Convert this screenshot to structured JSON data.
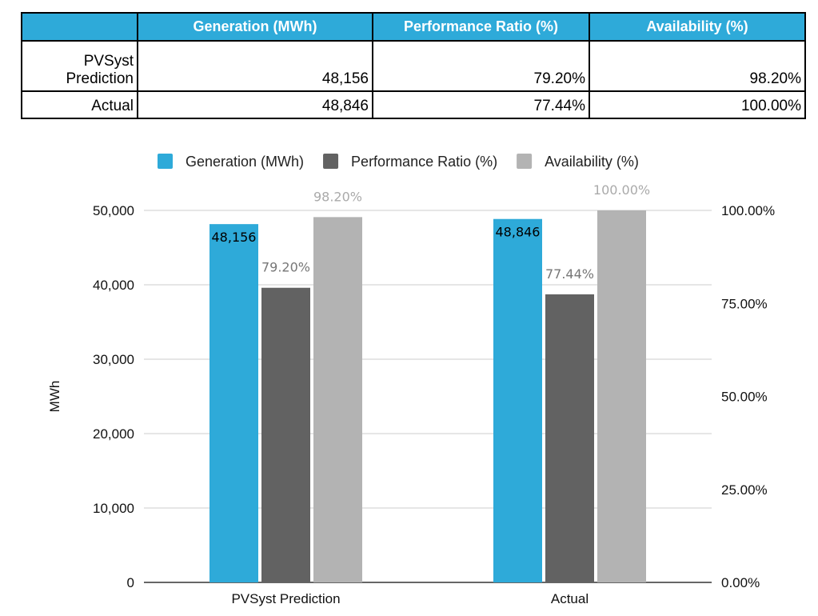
{
  "table": {
    "headers": [
      "",
      "Generation (MWh)",
      "Performance Ratio (%)",
      "Availability (%)"
    ],
    "rows": [
      {
        "label_line1": "PVSyst",
        "label_line2": "Prediction",
        "generation": "48,156",
        "pr": "79.20%",
        "availability": "98.20%"
      },
      {
        "label_line1": "Actual",
        "label_line2": "",
        "generation": "48,846",
        "pr": "77.44%",
        "availability": "100.00%"
      }
    ]
  },
  "chart_data": {
    "type": "bar",
    "categories": [
      "PVSyst Prediction",
      "Actual"
    ],
    "series": [
      {
        "name": "Generation (MWh)",
        "axis": "left",
        "color": "#2eaad9",
        "values": [
          48156,
          48846
        ],
        "labels": [
          "48,156",
          "48,846"
        ],
        "label_color": "#000000"
      },
      {
        "name": "Performance Ratio (%)",
        "axis": "right",
        "color": "#626262",
        "values": [
          79.2,
          77.44
        ],
        "labels": [
          "79.20%",
          "77.44%"
        ],
        "label_color": "#777777"
      },
      {
        "name": "Availability (%)",
        "axis": "right",
        "color": "#b3b3b3",
        "values": [
          98.2,
          100.0
        ],
        "labels": [
          "98.20%",
          "100.00%"
        ],
        "label_color": "#aaaaaa"
      }
    ],
    "ylabel": "MWh",
    "ylim": [
      0,
      50000
    ],
    "y_ticks": [
      "0",
      "10,000",
      "20,000",
      "30,000",
      "40,000",
      "50,000"
    ],
    "y2lim": [
      0,
      100
    ],
    "y2_ticks": [
      "0.00%",
      "25.00%",
      "50.00%",
      "75.00%",
      "100.00%"
    ],
    "grid": true,
    "legend": "top"
  }
}
